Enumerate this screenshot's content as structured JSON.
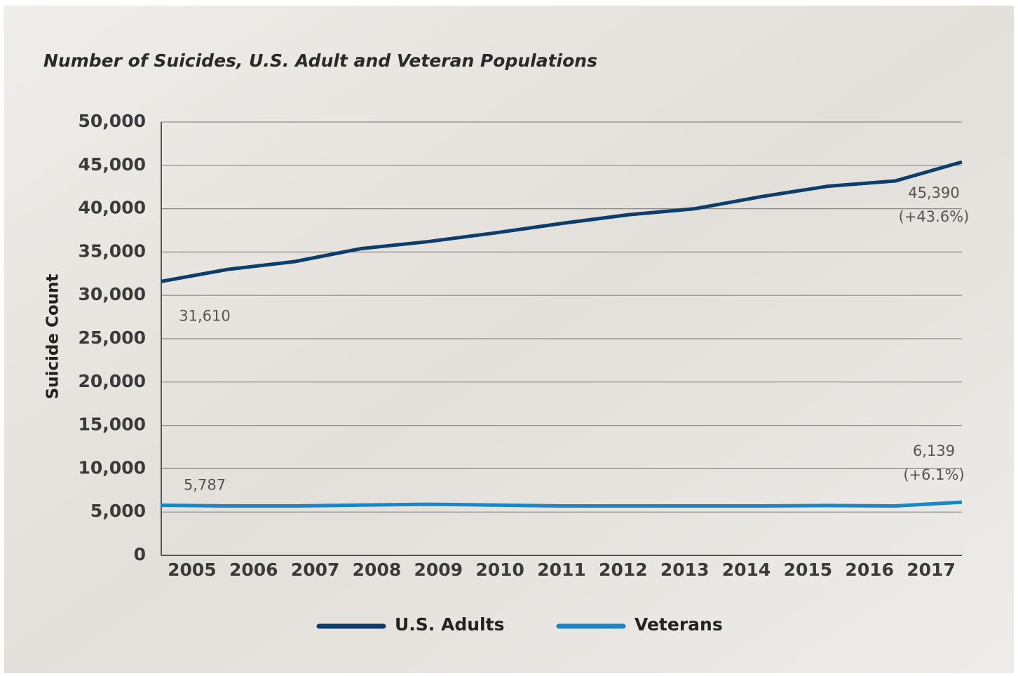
{
  "chart_data": {
    "type": "line",
    "title": "Number of Suicides, U.S. Adult and Veteran Populations",
    "y_label": "Suicide Count",
    "categories": [
      "2005",
      "2006",
      "2007",
      "2008",
      "2009",
      "2010",
      "2011",
      "2012",
      "2013",
      "2014",
      "2015",
      "2016",
      "2017"
    ],
    "series": [
      {
        "name": "U.S. Adults",
        "color": "#0d3d6b",
        "values": [
          31610,
          33000,
          33900,
          35400,
          36200,
          37200,
          38300,
          39300,
          40000,
          41400,
          42600,
          43200,
          45390
        ],
        "value_labels": [
          "31,610",
          null,
          null,
          null,
          null,
          null,
          null,
          null,
          null,
          null,
          null,
          null,
          "45,390"
        ],
        "annotation": "(+43.6%)"
      },
      {
        "name": "Veterans",
        "color": "#1a87c4",
        "values": [
          5787,
          5700,
          5700,
          5800,
          5900,
          5800,
          5700,
          5700,
          5700,
          5700,
          5750,
          5700,
          6139
        ],
        "value_labels": [
          "5,787",
          null,
          null,
          null,
          null,
          null,
          null,
          null,
          null,
          null,
          null,
          null,
          "6,139"
        ],
        "annotation": "(+6.1%)"
      }
    ],
    "ylim": [
      0,
      50000
    ],
    "yticks": [
      0,
      {
        "value": 5000,
        "label": "5,000"
      },
      {
        "value": 10000,
        "label": "10,000"
      },
      {
        "value": 15000,
        "label": "15,000"
      },
      {
        "value": 20000,
        "label": "20,000"
      },
      {
        "value": 25000,
        "label": "25,000"
      },
      {
        "value": 30000,
        "label": "30,000"
      },
      {
        "value": 35000,
        "label": "35,000"
      },
      {
        "value": 40000,
        "label": "40,000"
      },
      {
        "value": 45000,
        "label": "45,000"
      },
      {
        "value": 50000,
        "label": "50,000"
      }
    ],
    "grid": true
  }
}
